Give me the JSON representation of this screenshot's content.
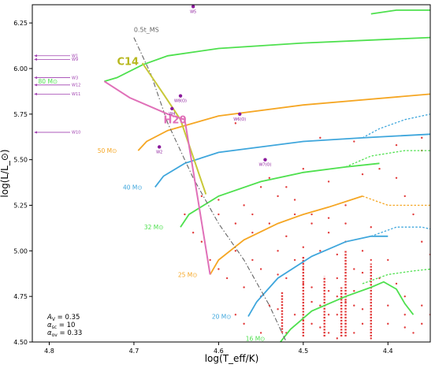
{
  "chart_data": {
    "type": "scatter",
    "xlabel": "log(T_eff/K)",
    "ylabel": "log(L/L_⊙)",
    "xlim": [
      4.82,
      4.35
    ],
    "ylim": [
      4.5,
      6.35
    ],
    "x_ticks": [
      {
        "v": 4.8,
        "label": "4.8"
      },
      {
        "v": 4.7,
        "label": "4.7"
      },
      {
        "v": 4.6,
        "label": "4.6"
      },
      {
        "v": 4.5,
        "label": "4.5"
      },
      {
        "v": 4.4,
        "label": "4.4"
      }
    ],
    "y_ticks": [
      {
        "v": 4.5,
        "label": "4.50"
      },
      {
        "v": 4.75,
        "label": "4.75"
      },
      {
        "v": 5.0,
        "label": "5.00"
      },
      {
        "v": 5.25,
        "label": "5.25"
      },
      {
        "v": 5.5,
        "label": "5.50"
      },
      {
        "v": 5.75,
        "label": "5.75"
      },
      {
        "v": 6.0,
        "label": "6.00"
      },
      {
        "v": 6.25,
        "label": "6.25"
      }
    ],
    "tracks": [
      {
        "name": "80 M⊙",
        "color": "#4ee04e",
        "lx": 4.79,
        "ly": 5.93,
        "points": [
          [
            4.735,
            5.93
          ],
          [
            4.72,
            5.95
          ],
          [
            4.69,
            6.02
          ],
          [
            4.66,
            6.07
          ],
          [
            4.6,
            6.11
          ],
          [
            4.5,
            6.14
          ],
          [
            4.35,
            6.17
          ]
        ]
      },
      {
        "name": "50 M⊙",
        "color": "#f5a623",
        "lx": 4.72,
        "ly": 5.55,
        "points": [
          [
            4.695,
            5.55
          ],
          [
            4.685,
            5.6
          ],
          [
            4.66,
            5.66
          ],
          [
            4.6,
            5.74
          ],
          [
            4.5,
            5.8
          ],
          [
            4.35,
            5.86
          ]
        ]
      },
      {
        "name": "40 M⊙",
        "color": "#3ea6dc",
        "lx": 4.69,
        "ly": 5.35,
        "points": [
          [
            4.675,
            5.35
          ],
          [
            4.665,
            5.41
          ],
          [
            4.64,
            5.48
          ],
          [
            4.6,
            5.54
          ],
          [
            4.5,
            5.6
          ],
          [
            4.43,
            5.62
          ],
          [
            4.35,
            5.64
          ]
        ]
      },
      {
        "name": "32 M⊙",
        "color": "#4ee04e",
        "lx": 4.665,
        "ly": 5.13,
        "points": [
          [
            4.645,
            5.13
          ],
          [
            4.635,
            5.2
          ],
          [
            4.6,
            5.3
          ],
          [
            4.55,
            5.38
          ],
          [
            4.5,
            5.43
          ],
          [
            4.45,
            5.46
          ],
          [
            4.41,
            5.48
          ]
        ]
      },
      {
        "name": "25 M⊙",
        "color": "#f5a623",
        "lx": 4.625,
        "ly": 4.87,
        "points": [
          [
            4.61,
            4.87
          ],
          [
            4.6,
            4.95
          ],
          [
            4.57,
            5.06
          ],
          [
            4.53,
            5.15
          ],
          [
            4.5,
            5.2
          ],
          [
            4.47,
            5.24
          ],
          [
            4.43,
            5.3
          ]
        ]
      },
      {
        "name": "20 M⊙",
        "color": "#3ea6dc",
        "lx": 4.585,
        "ly": 4.64,
        "points": [
          [
            4.565,
            4.64
          ],
          [
            4.555,
            4.72
          ],
          [
            4.53,
            4.85
          ],
          [
            4.49,
            4.97
          ],
          [
            4.45,
            5.05
          ],
          [
            4.42,
            5.08
          ],
          [
            4.4,
            5.08
          ]
        ]
      },
      {
        "name": "16 M⊙",
        "color": "#4ee04e",
        "lx": 4.545,
        "ly": 4.52,
        "points": [
          [
            4.527,
            4.5
          ],
          [
            4.515,
            4.57
          ],
          [
            4.49,
            4.67
          ],
          [
            4.45,
            4.75
          ],
          [
            4.42,
            4.8
          ],
          [
            4.405,
            4.83
          ],
          [
            4.39,
            4.79
          ],
          [
            4.38,
            4.71
          ],
          [
            4.37,
            4.65
          ]
        ]
      }
    ],
    "track_80_tail": [
      [
        4.42,
        6.3
      ],
      [
        4.39,
        6.32
      ],
      [
        4.35,
        6.32
      ]
    ],
    "dashed_segments": [
      {
        "color": "#3ea6dc",
        "points": [
          [
            4.43,
            5.62
          ],
          [
            4.41,
            5.67
          ],
          [
            4.38,
            5.72
          ],
          [
            4.35,
            5.75
          ]
        ]
      },
      {
        "color": "#4ee04e",
        "points": [
          [
            4.45,
            5.46
          ],
          [
            4.42,
            5.52
          ],
          [
            4.38,
            5.55
          ],
          [
            4.35,
            5.55
          ]
        ]
      },
      {
        "color": "#f5a623",
        "points": [
          [
            4.43,
            5.3
          ],
          [
            4.4,
            5.25
          ],
          [
            4.37,
            5.25
          ],
          [
            4.35,
            5.25
          ]
        ]
      },
      {
        "color": "#3ea6dc",
        "points": [
          [
            4.42,
            5.08
          ],
          [
            4.39,
            5.13
          ],
          [
            4.36,
            5.13
          ],
          [
            4.35,
            5.12
          ]
        ]
      },
      {
        "color": "#4ee04e",
        "points": [
          [
            4.43,
            4.82
          ],
          [
            4.4,
            4.87
          ],
          [
            4.37,
            4.89
          ],
          [
            4.35,
            4.9
          ]
        ]
      }
    ],
    "lines": [
      {
        "name": "C14",
        "color": "#c8c838",
        "label_color": "#b8b820",
        "lx": 4.72,
        "ly": 6.02,
        "points": [
          [
            4.69,
            6.03
          ],
          [
            4.665,
            5.86
          ],
          [
            4.645,
            5.72
          ],
          [
            4.615,
            5.31
          ]
        ]
      },
      {
        "name": "H20",
        "color": "#e070b8",
        "label_color": "#e070b8",
        "lx": 4.665,
        "ly": 5.7,
        "points": [
          [
            4.735,
            5.93
          ],
          [
            4.705,
            5.84
          ],
          [
            4.66,
            5.75
          ],
          [
            4.64,
            5.72
          ],
          [
            4.625,
            5.3
          ],
          [
            4.61,
            4.87
          ]
        ]
      }
    ],
    "half_ms": {
      "name": "0.5t_MS",
      "color": "#666666",
      "lx": 4.7,
      "ly": 6.2,
      "points": [
        [
          4.7,
          6.17
        ],
        [
          4.68,
          5.97
        ],
        [
          4.66,
          5.7
        ],
        [
          4.63,
          5.4
        ],
        [
          4.6,
          5.15
        ],
        [
          4.57,
          4.95
        ],
        [
          4.54,
          4.7
        ],
        [
          4.52,
          4.5
        ]
      ]
    },
    "wr_stars": [
      {
        "name": "W5",
        "x": 4.63,
        "y": 6.34
      },
      {
        "name": "W8(O)",
        "x": 4.645,
        "y": 5.85
      },
      {
        "name": "W4",
        "x": 4.655,
        "y": 5.78
      },
      {
        "name": "W6(O)",
        "x": 4.575,
        "y": 5.75
      },
      {
        "name": "W2",
        "x": 4.67,
        "y": 5.57
      },
      {
        "name": "W7(O)",
        "x": 4.545,
        "y": 5.5
      }
    ],
    "offscale": [
      {
        "name": "W1",
        "y": 6.07
      },
      {
        "name": "W9",
        "y": 6.05
      },
      {
        "name": "W3",
        "y": 5.95
      },
      {
        "name": "W12",
        "y": 5.91
      },
      {
        "name": "W11",
        "y": 5.86
      },
      {
        "name": "W10",
        "y": 5.65
      }
    ],
    "ms_stars": [
      [
        4.42,
        5.13
      ],
      [
        4.58,
        5.7
      ],
      [
        4.48,
        5.62
      ],
      [
        4.39,
        5.58
      ],
      [
        4.36,
        5.62
      ],
      [
        4.36,
        5.55
      ],
      [
        4.5,
        5.45
      ],
      [
        4.44,
        5.6
      ],
      [
        4.55,
        5.35
      ],
      [
        4.53,
        5.3
      ],
      [
        4.51,
        5.28
      ],
      [
        4.49,
        5.2
      ],
      [
        4.47,
        5.18
      ],
      [
        4.45,
        5.15
      ],
      [
        4.6,
        5.2
      ],
      [
        4.58,
        5.15
      ],
      [
        4.56,
        5.1
      ],
      [
        4.52,
        5.08
      ],
      [
        4.5,
        5.02
      ],
      [
        4.48,
        5.0
      ],
      [
        4.46,
        4.98
      ],
      [
        4.45,
        4.93
      ],
      [
        4.44,
        4.9
      ],
      [
        4.43,
        4.88
      ],
      [
        4.58,
        5.0
      ],
      [
        4.56,
        4.95
      ],
      [
        4.55,
        4.9
      ],
      [
        4.53,
        4.87
      ],
      [
        4.52,
        4.85
      ],
      [
        4.5,
        4.82
      ],
      [
        4.49,
        4.8
      ],
      [
        4.47,
        4.78
      ],
      [
        4.46,
        4.75
      ],
      [
        4.45,
        4.72
      ],
      [
        4.44,
        4.7
      ],
      [
        4.43,
        4.68
      ],
      [
        4.42,
        4.65
      ],
      [
        4.4,
        4.6
      ],
      [
        4.38,
        4.58
      ],
      [
        4.37,
        4.55
      ],
      [
        4.6,
        4.9
      ],
      [
        4.59,
        4.85
      ],
      [
        4.57,
        4.8
      ],
      [
        4.55,
        4.75
      ],
      [
        4.54,
        4.7
      ],
      [
        4.53,
        4.68
      ],
      [
        4.51,
        4.65
      ],
      [
        4.5,
        4.62
      ],
      [
        4.49,
        4.6
      ],
      [
        4.48,
        4.58
      ],
      [
        4.47,
        4.55
      ],
      [
        4.46,
        4.52
      ],
      [
        4.62,
        5.05
      ],
      [
        4.63,
        5.1
      ],
      [
        4.61,
        4.95
      ],
      [
        4.64,
        5.2
      ],
      [
        4.54,
        5.4
      ],
      [
        4.52,
        5.35
      ],
      [
        4.47,
        5.38
      ],
      [
        4.43,
        5.42
      ],
      [
        4.41,
        5.45
      ],
      [
        4.39,
        5.4
      ],
      [
        4.38,
        5.3
      ],
      [
        4.37,
        5.2
      ],
      [
        4.36,
        5.05
      ],
      [
        4.35,
        4.98
      ],
      [
        4.4,
        4.95
      ],
      [
        4.41,
        4.85
      ],
      [
        4.39,
        4.82
      ],
      [
        4.38,
        4.75
      ],
      [
        4.36,
        4.7
      ],
      [
        4.35,
        4.65
      ],
      [
        4.45,
        5.25
      ],
      [
        4.47,
        5.1
      ],
      [
        4.49,
        5.15
      ],
      [
        4.51,
        5.2
      ],
      [
        4.5,
        4.9
      ],
      [
        4.46,
        4.85
      ],
      [
        4.44,
        4.78
      ],
      [
        4.43,
        4.6
      ],
      [
        4.57,
        4.6
      ],
      [
        4.55,
        4.55
      ],
      [
        4.58,
        4.65
      ],
      [
        4.52,
        4.55
      ],
      [
        4.48,
        4.7
      ],
      [
        4.46,
        4.65
      ],
      [
        4.44,
        4.55
      ],
      [
        4.42,
        4.52
      ],
      [
        4.4,
        4.7
      ],
      [
        4.38,
        4.65
      ],
      [
        4.36,
        4.6
      ],
      [
        4.57,
        5.25
      ],
      [
        4.6,
        5.28
      ],
      [
        4.62,
        5.3
      ],
      [
        4.56,
        5.2
      ],
      [
        4.54,
        5.15
      ],
      [
        4.53,
        5.0
      ],
      [
        4.51,
        4.95
      ],
      [
        4.45,
        5.05
      ],
      [
        4.43,
        5.0
      ],
      [
        4.42,
        4.95
      ],
      [
        4.49,
        4.72
      ],
      [
        4.47,
        4.65
      ],
      [
        4.45,
        4.6
      ]
    ],
    "stack_cols": [
      {
        "x": 4.5,
        "y0": 4.53,
        "y1": 4.97
      },
      {
        "x": 4.45,
        "y0": 4.53,
        "y1": 5.0
      },
      {
        "x": 4.42,
        "y0": 4.53,
        "y1": 4.93
      },
      {
        "x": 4.475,
        "y0": 4.53,
        "y1": 4.86
      },
      {
        "x": 4.525,
        "y0": 4.55,
        "y1": 4.78
      },
      {
        "x": 4.455,
        "y0": 4.53,
        "y1": 4.8
      }
    ],
    "params": [
      {
        "sym": "A",
        "sub": "V",
        "val": "0.35"
      },
      {
        "sym": "α",
        "sub": "sc",
        "val": "10"
      },
      {
        "sym": "α",
        "sub": "ov",
        "val": "0.33"
      }
    ]
  }
}
